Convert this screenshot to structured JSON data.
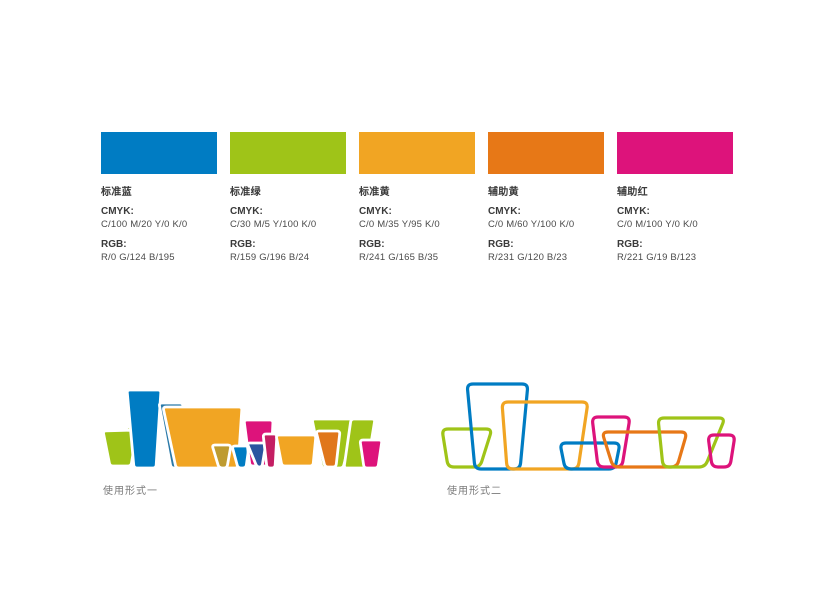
{
  "page": {
    "usage_form1_label": "使用形式一",
    "usage_form2_label": "使用形式二"
  },
  "swatches": [
    {
      "name": "标准蓝",
      "cmyk_label": "CMYK:",
      "cmyk_value": "C/100  M/20  Y/0  K/0",
      "rgb_label": "RGB:",
      "rgb_value": "R/0  G/124  B/195",
      "hex": "#007CC3"
    },
    {
      "name": "标准绿",
      "cmyk_label": "CMYK:",
      "cmyk_value": "C/30  M/5  Y/100  K/0",
      "rgb_label": "RGB:",
      "rgb_value": "R/159  G/196  B/24",
      "hex": "#9FC418"
    },
    {
      "name": "标准黄",
      "cmyk_label": "CMYK:",
      "cmyk_value": "C/0  M/35  Y/95  K/0",
      "rgb_label": "RGB:",
      "rgb_value": "R/241  G/165  B/35",
      "hex": "#F1A523"
    },
    {
      "name": "辅助黄",
      "cmyk_label": "CMYK:",
      "cmyk_value": "C/0  M/60  Y/100  K/0",
      "rgb_label": "RGB:",
      "rgb_value": "R/231  G/120  B/23",
      "hex": "#E77817"
    },
    {
      "name": "辅助红",
      "cmyk_label": "CMYK:",
      "cmyk_value": "C/0  M/100  Y/0  K/0",
      "rgb_label": "RGB:",
      "rgb_value": "R/221  G/19  B/123",
      "hex": "#DD137B"
    }
  ],
  "artwork": {
    "outline_stroke": "#FFFFFF",
    "overlay_colors": {
      "dark_blue": "#2A79A8",
      "olive": "#BE9B30",
      "navy": "#2B55A0",
      "crimson": "#C41E63",
      "dark_orange": "#E0771B"
    }
  }
}
